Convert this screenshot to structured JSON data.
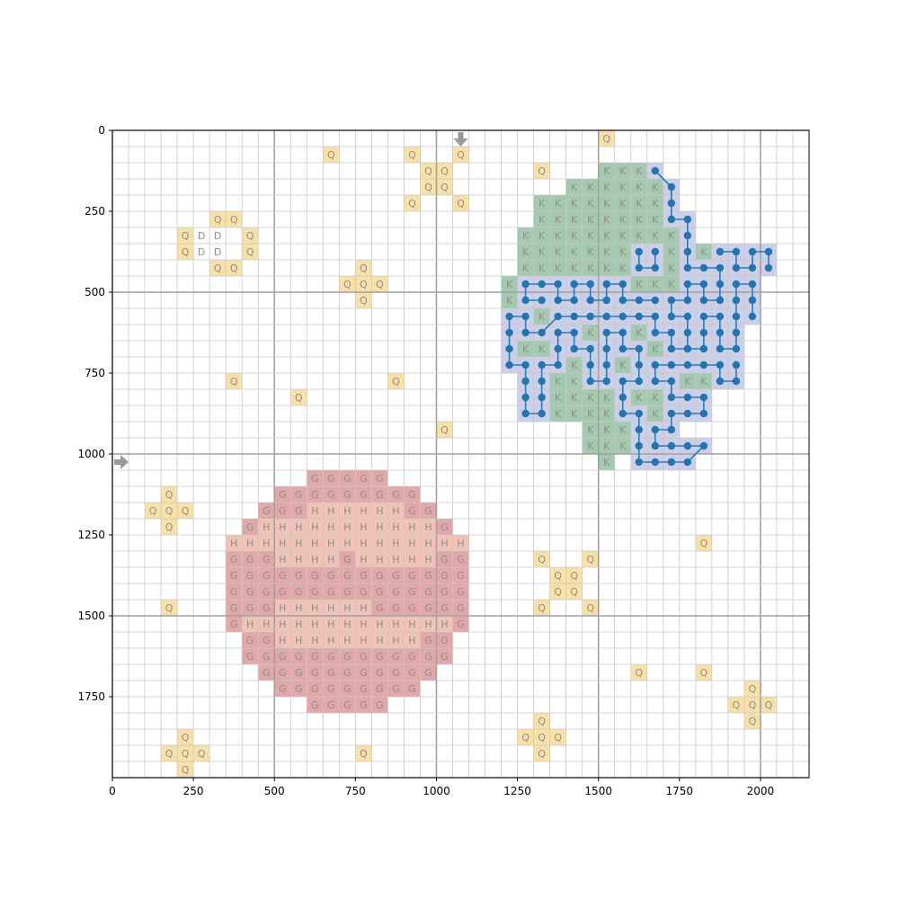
{
  "grid": {
    "x_range": [
      0,
      2150
    ],
    "y_range": [
      0,
      2000
    ],
    "y_inverted": true,
    "cell_size": 50,
    "minor_grid": true,
    "major_grid_step": 500,
    "x_ticks": [
      "0",
      "250",
      "500",
      "750",
      "1000",
      "1250",
      "1500",
      "1750",
      "2000"
    ],
    "y_ticks": [
      "0",
      "250",
      "500",
      "750",
      "1000",
      "1250",
      "1500",
      "1750"
    ]
  },
  "colors": {
    "Q": "#f8e0a9",
    "D": "#ffffff",
    "G": "#e0a8a8",
    "H": "#efc3b6",
    "K": "#a4c9ae",
    "R": "#cbcfe8",
    "path_line": "#2f7ab6",
    "path_dot": "#2474b2",
    "grid_minor": "#c8c8c8",
    "grid_major": "#a0a0a0",
    "arrow": "#999999"
  },
  "markers": [
    {
      "name": "top-entry-arrow-icon",
      "direction": "down",
      "col": 21,
      "row": 0
    },
    {
      "name": "left-entry-arrow-icon",
      "direction": "right",
      "col": 0,
      "row": 20
    }
  ],
  "q_cells": [
    [
      30,
      0
    ],
    [
      13,
      1
    ],
    [
      18,
      1
    ],
    [
      21,
      1
    ],
    [
      26,
      2
    ],
    [
      19,
      2
    ],
    [
      20,
      2
    ],
    [
      19,
      3
    ],
    [
      20,
      3
    ],
    [
      18,
      4
    ],
    [
      21,
      4
    ],
    [
      6,
      5
    ],
    [
      7,
      5
    ],
    [
      4,
      6
    ],
    [
      8,
      6
    ],
    [
      4,
      7
    ],
    [
      8,
      7
    ],
    [
      6,
      8
    ],
    [
      7,
      8
    ],
    [
      15,
      8
    ],
    [
      14,
      9
    ],
    [
      15,
      9
    ],
    [
      16,
      9
    ],
    [
      15,
      10
    ],
    [
      7,
      15
    ],
    [
      17,
      15
    ],
    [
      11,
      16
    ],
    [
      20,
      18
    ],
    [
      3,
      22
    ],
    [
      2,
      23
    ],
    [
      3,
      23
    ],
    [
      4,
      23
    ],
    [
      3,
      24
    ],
    [
      36,
      25
    ],
    [
      26,
      26
    ],
    [
      29,
      26
    ],
    [
      27,
      27
    ],
    [
      28,
      27
    ],
    [
      27,
      28
    ],
    [
      28,
      28
    ],
    [
      3,
      29
    ],
    [
      26,
      29
    ],
    [
      29,
      29
    ],
    [
      32,
      33
    ],
    [
      36,
      33
    ],
    [
      39,
      34
    ],
    [
      38,
      35
    ],
    [
      39,
      35
    ],
    [
      40,
      35
    ],
    [
      39,
      36
    ],
    [
      26,
      36
    ],
    [
      25,
      37
    ],
    [
      26,
      37
    ],
    [
      27,
      37
    ],
    [
      26,
      38
    ],
    [
      4,
      37
    ],
    [
      3,
      38
    ],
    [
      4,
      38
    ],
    [
      5,
      38
    ],
    [
      15,
      38
    ],
    [
      4,
      39
    ]
  ],
  "d_cells": [
    [
      5,
      6
    ],
    [
      6,
      6
    ],
    [
      5,
      7
    ],
    [
      6,
      7
    ]
  ],
  "g_rows": [
    {
      "row": 21,
      "from": 12,
      "to": 16
    },
    {
      "row": 22,
      "from": 10,
      "to": 18
    },
    {
      "row": 23,
      "from": 9,
      "to": 19
    },
    {
      "row": 24,
      "from": 8,
      "to": 20
    },
    {
      "row": 25,
      "from": 8,
      "to": 20
    },
    {
      "row": 26,
      "from": 7,
      "to": 21
    },
    {
      "row": 27,
      "from": 7,
      "to": 21
    },
    {
      "row": 28,
      "from": 7,
      "to": 21
    },
    {
      "row": 29,
      "from": 7,
      "to": 21
    },
    {
      "row": 30,
      "from": 7,
      "to": 21
    },
    {
      "row": 31,
      "from": 8,
      "to": 20
    },
    {
      "row": 32,
      "from": 8,
      "to": 20
    },
    {
      "row": 33,
      "from": 9,
      "to": 19
    },
    {
      "row": 34,
      "from": 10,
      "to": 18
    },
    {
      "row": 35,
      "from": 12,
      "to": 16
    }
  ],
  "h_cells": [
    [
      12,
      23
    ],
    [
      13,
      23
    ],
    [
      14,
      23
    ],
    [
      15,
      23
    ],
    [
      16,
      23
    ],
    [
      17,
      23
    ],
    [
      9,
      24
    ],
    [
      10,
      24
    ],
    [
      11,
      24
    ],
    [
      12,
      24
    ],
    [
      13,
      24
    ],
    [
      14,
      24
    ],
    [
      15,
      24
    ],
    [
      16,
      24
    ],
    [
      17,
      24
    ],
    [
      18,
      24
    ],
    [
      19,
      24
    ],
    [
      7,
      25
    ],
    [
      8,
      25
    ],
    [
      9,
      25
    ],
    [
      10,
      25
    ],
    [
      11,
      25
    ],
    [
      12,
      25
    ],
    [
      13,
      25
    ],
    [
      14,
      25
    ],
    [
      15,
      25
    ],
    [
      16,
      25
    ],
    [
      17,
      25
    ],
    [
      18,
      25
    ],
    [
      19,
      25
    ],
    [
      20,
      25
    ],
    [
      21,
      25
    ],
    [
      10,
      26
    ],
    [
      11,
      26
    ],
    [
      12,
      26
    ],
    [
      13,
      26
    ],
    [
      15,
      26
    ],
    [
      16,
      26
    ],
    [
      17,
      26
    ],
    [
      18,
      26
    ],
    [
      19,
      26
    ],
    [
      10,
      29
    ],
    [
      11,
      29
    ],
    [
      12,
      29
    ],
    [
      13,
      29
    ],
    [
      14,
      29
    ],
    [
      15,
      29
    ],
    [
      8,
      30
    ],
    [
      9,
      30
    ],
    [
      10,
      30
    ],
    [
      11,
      30
    ],
    [
      12,
      30
    ],
    [
      13,
      30
    ],
    [
      14,
      30
    ],
    [
      15,
      30
    ],
    [
      16,
      30
    ],
    [
      17,
      30
    ],
    [
      18,
      30
    ],
    [
      19,
      30
    ],
    [
      20,
      30
    ],
    [
      10,
      31
    ],
    [
      11,
      31
    ],
    [
      12,
      31
    ],
    [
      13,
      31
    ],
    [
      14,
      31
    ],
    [
      15,
      31
    ],
    [
      16,
      31
    ],
    [
      17,
      31
    ],
    [
      18,
      31
    ]
  ],
  "k_rows": [
    {
      "row": 2,
      "from": 30,
      "to": 33
    },
    {
      "row": 3,
      "from": 28,
      "to": 33
    },
    {
      "row": 4,
      "from": 26,
      "to": 34
    },
    {
      "row": 5,
      "from": 26,
      "to": 35
    },
    {
      "row": 6,
      "from": 25,
      "to": 35
    },
    {
      "row": 7,
      "from": 25,
      "to": 36
    },
    {
      "row": 8,
      "from": 25,
      "to": 36
    },
    {
      "row": 9,
      "from": 24,
      "to": 37
    },
    {
      "row": 10,
      "from": 24,
      "to": 37
    },
    {
      "row": 11,
      "from": 24,
      "to": 37
    },
    {
      "row": 12,
      "from": 24,
      "to": 37
    },
    {
      "row": 13,
      "from": 24,
      "to": 37
    },
    {
      "row": 14,
      "from": 25,
      "to": 36
    },
    {
      "row": 15,
      "from": 25,
      "to": 36
    },
    {
      "row": 16,
      "from": 26,
      "to": 35
    },
    {
      "row": 17,
      "from": 27,
      "to": 34
    },
    {
      "row": 18,
      "from": 29,
      "to": 32
    },
    {
      "row": 19,
      "from": 29,
      "to": 31
    },
    {
      "row": 20,
      "from": 30,
      "to": 30
    }
  ],
  "path": [
    [
      33,
      2
    ],
    [
      34,
      3
    ],
    [
      34,
      4
    ],
    [
      34,
      5
    ],
    [
      35,
      5
    ],
    [
      35,
      6
    ],
    [
      35,
      7
    ],
    [
      35,
      8
    ],
    [
      36,
      8
    ],
    [
      37,
      8
    ],
    [
      37,
      9
    ],
    [
      37,
      10
    ],
    [
      36,
      10
    ],
    [
      36,
      9
    ],
    [
      35,
      9
    ],
    [
      35,
      10
    ],
    [
      34,
      10
    ],
    [
      34,
      11
    ],
    [
      35,
      11
    ],
    [
      35,
      12
    ],
    [
      35,
      13
    ],
    [
      36,
      13
    ],
    [
      36,
      12
    ],
    [
      36,
      11
    ],
    [
      37,
      11
    ],
    [
      37,
      12
    ],
    [
      37,
      13
    ],
    [
      38,
      13
    ],
    [
      38,
      12
    ],
    [
      38,
      11
    ],
    [
      38,
      10
    ],
    [
      38,
      9
    ],
    [
      39,
      9
    ],
    [
      39,
      10
    ],
    [
      39,
      11
    ],
    [
      38,
      14
    ],
    [
      38,
      15
    ],
    [
      37,
      15
    ],
    [
      37,
      14
    ],
    [
      36,
      14
    ],
    [
      35,
      14
    ],
    [
      34,
      14
    ],
    [
      33,
      14
    ],
    [
      33,
      15
    ],
    [
      34,
      15
    ],
    [
      34,
      16
    ],
    [
      35,
      16
    ],
    [
      36,
      16
    ],
    [
      36,
      17
    ],
    [
      35,
      17
    ],
    [
      34,
      17
    ],
    [
      34,
      18
    ],
    [
      33,
      18
    ],
    [
      33,
      19
    ],
    [
      34,
      19
    ],
    [
      35,
      19
    ],
    [
      36,
      19
    ],
    [
      35,
      20
    ],
    [
      34,
      20
    ],
    [
      33,
      20
    ],
    [
      32,
      20
    ],
    [
      32,
      19
    ],
    [
      32,
      18
    ],
    [
      32,
      17
    ],
    [
      31,
      17
    ],
    [
      31,
      16
    ],
    [
      31,
      15
    ],
    [
      32,
      15
    ],
    [
      32,
      14
    ],
    [
      32,
      13
    ],
    [
      31,
      13
    ],
    [
      31,
      12
    ],
    [
      30,
      12
    ],
    [
      30,
      13
    ],
    [
      30,
      14
    ],
    [
      30,
      15
    ],
    [
      29,
      15
    ],
    [
      29,
      14
    ],
    [
      29,
      13
    ],
    [
      28,
      13
    ],
    [
      28,
      12
    ],
    [
      27,
      12
    ],
    [
      27,
      13
    ],
    [
      27,
      14
    ],
    [
      26,
      14
    ],
    [
      26,
      15
    ],
    [
      26,
      16
    ],
    [
      26,
      17
    ],
    [
      25,
      17
    ],
    [
      25,
      16
    ],
    [
      25,
      15
    ],
    [
      25,
      14
    ],
    [
      24,
      14
    ],
    [
      24,
      13
    ],
    [
      24,
      12
    ],
    [
      24,
      11
    ],
    [
      25,
      11
    ],
    [
      25,
      12
    ],
    [
      26,
      12
    ],
    [
      27,
      11
    ],
    [
      28,
      11
    ],
    [
      29,
      11
    ],
    [
      30,
      11
    ],
    [
      31,
      11
    ],
    [
      32,
      11
    ],
    [
      33,
      11
    ],
    [
      33,
      12
    ],
    [
      34,
      12
    ],
    [
      34,
      13
    ],
    [
      35,
      13
    ],
    [
      33,
      10
    ],
    [
      32,
      10
    ],
    [
      31,
      10
    ],
    [
      31,
      9
    ],
    [
      30,
      9
    ],
    [
      30,
      10
    ],
    [
      29,
      10
    ],
    [
      29,
      9
    ],
    [
      28,
      9
    ],
    [
      28,
      10
    ],
    [
      27,
      10
    ],
    [
      27,
      9
    ],
    [
      26,
      9
    ],
    [
      25,
      9
    ],
    [
      25,
      10
    ],
    [
      26,
      10
    ],
    [
      37,
      7
    ],
    [
      38,
      7
    ],
    [
      38,
      8
    ],
    [
      39,
      8
    ],
    [
      39,
      7
    ],
    [
      40,
      7
    ],
    [
      40,
      8
    ],
    [
      33,
      7
    ],
    [
      33,
      8
    ],
    [
      32,
      8
    ],
    [
      32,
      7
    ]
  ],
  "path_edges_mode": "sequential"
}
